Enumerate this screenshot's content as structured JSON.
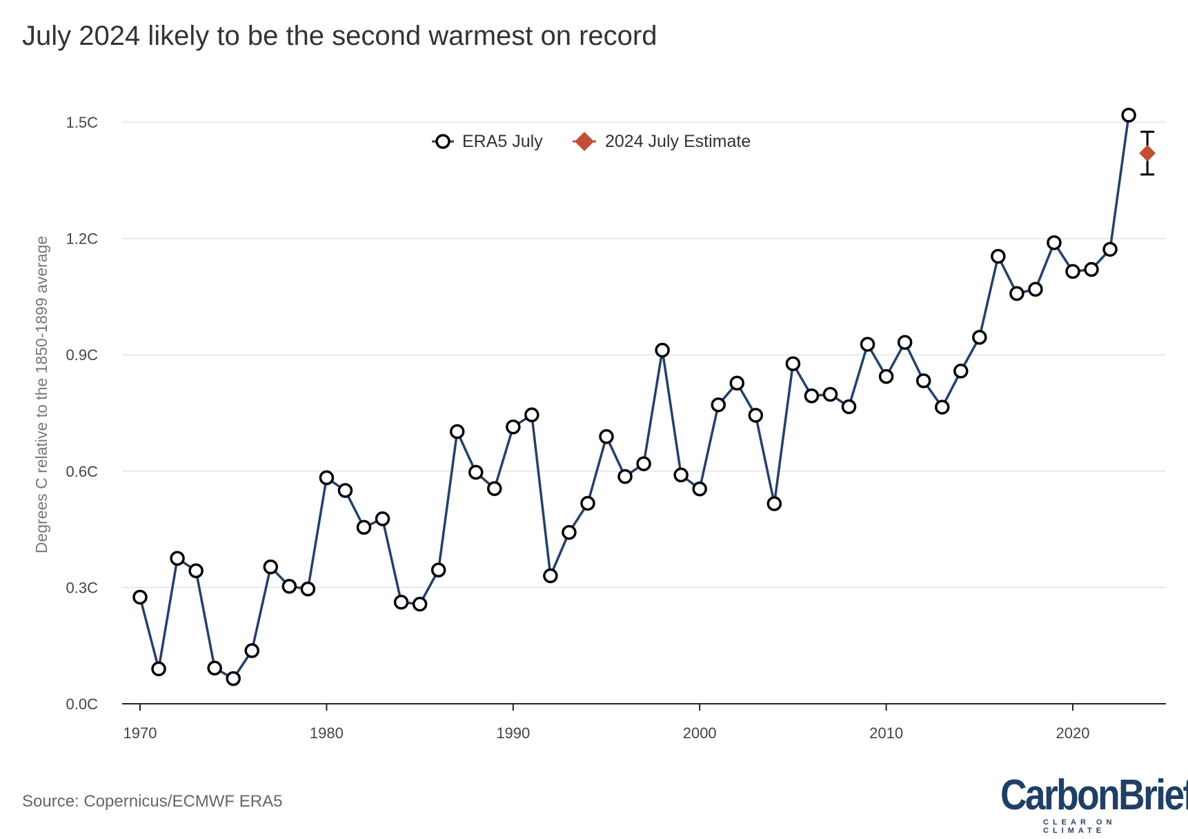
{
  "chart_data": {
    "type": "line",
    "title": "July 2024 likely to be the second warmest on record",
    "xlabel": "",
    "ylabel": "Degrees C relative to the 1850-1899 average",
    "xlim": [
      1969.1,
      2024.9
    ],
    "ylim": [
      0,
      1.5
    ],
    "x_ticks": [
      1970,
      1980,
      1990,
      2000,
      2010,
      2020
    ],
    "y_ticks": [
      {
        "value": 0.0,
        "label": "0.0C"
      },
      {
        "value": 0.3,
        "label": "0.3C"
      },
      {
        "value": 0.6,
        "label": "0.6C"
      },
      {
        "value": 0.9,
        "label": "0.9C"
      },
      {
        "value": 1.2,
        "label": "1.2C"
      },
      {
        "value": 1.5,
        "label": "1.5C"
      }
    ],
    "grid": "horizontal",
    "legend": "top-center",
    "series": [
      {
        "name": "ERA5 July",
        "color": "#23406b",
        "marker": "open-circle",
        "x": [
          1970,
          1971,
          1972,
          1973,
          1974,
          1975,
          1976,
          1977,
          1978,
          1979,
          1980,
          1981,
          1982,
          1983,
          1984,
          1985,
          1986,
          1987,
          1988,
          1989,
          1990,
          1991,
          1992,
          1993,
          1994,
          1995,
          1996,
          1997,
          1998,
          1999,
          2000,
          2001,
          2002,
          2003,
          2004,
          2005,
          2006,
          2007,
          2008,
          2009,
          2010,
          2011,
          2012,
          2013,
          2014,
          2015,
          2016,
          2017,
          2018,
          2019,
          2020,
          2021,
          2022,
          2023
        ],
        "values": [
          0.275,
          0.09,
          0.375,
          0.343,
          0.092,
          0.065,
          0.137,
          0.353,
          0.303,
          0.296,
          0.583,
          0.55,
          0.455,
          0.477,
          0.262,
          0.257,
          0.345,
          0.702,
          0.597,
          0.555,
          0.714,
          0.745,
          0.33,
          0.442,
          0.517,
          0.689,
          0.586,
          0.619,
          0.912,
          0.59,
          0.554,
          0.771,
          0.827,
          0.744,
          0.516,
          0.877,
          0.794,
          0.798,
          0.766,
          0.927,
          0.844,
          0.932,
          0.833,
          0.765,
          0.858,
          0.945,
          1.154,
          1.058,
          1.069,
          1.189,
          1.115,
          1.12,
          1.172,
          1.518
        ]
      },
      {
        "name": "2024 July Estimate",
        "color": "#c24f33",
        "marker": "diamond",
        "x": [
          2024
        ],
        "values": [
          1.42
        ],
        "error_low": [
          1.365
        ],
        "error_high": [
          1.475
        ]
      }
    ],
    "source": "Source: Copernicus/ECMWF ERA5"
  },
  "logo": {
    "name": "CarbonBrief",
    "tagline": "CLEAR ON CLIMATE"
  }
}
